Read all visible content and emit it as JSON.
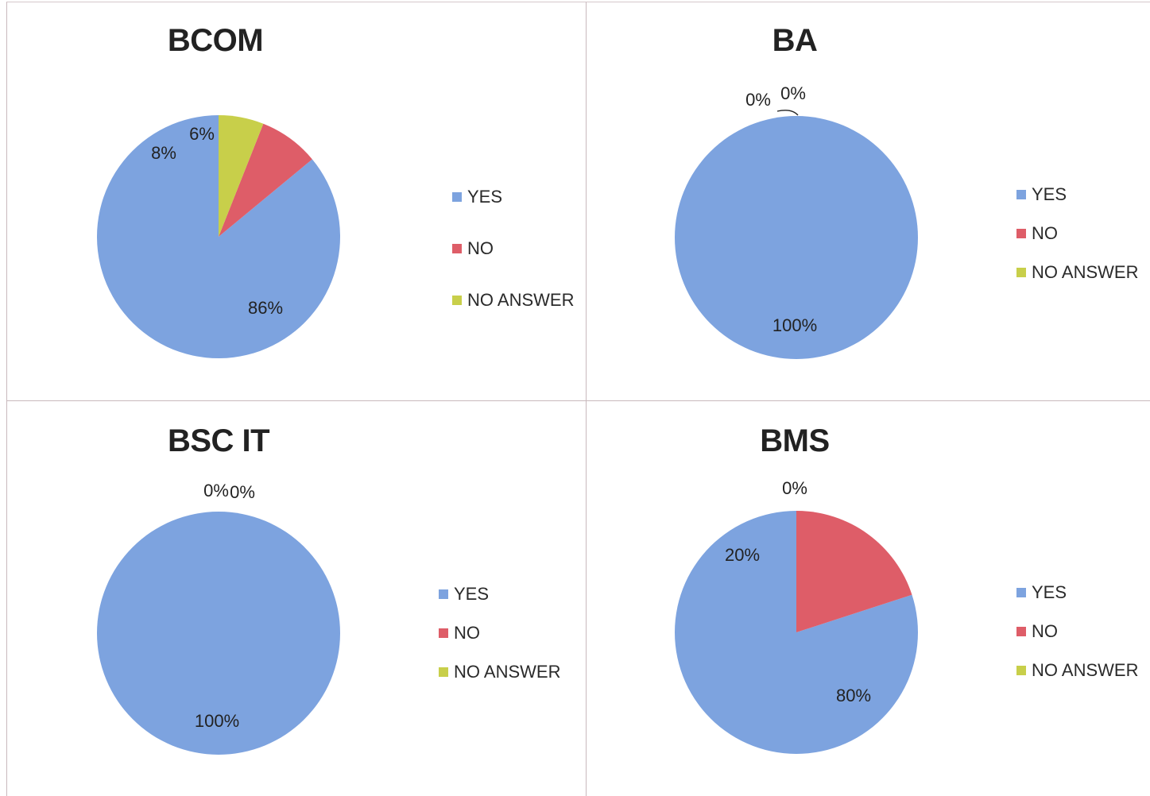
{
  "colors": {
    "YES": "#7da3df",
    "NO": "#de5d68",
    "NO ANSWER": "#c8cf4a"
  },
  "chart_data": [
    {
      "type": "pie",
      "title": "BCOM",
      "labels": [
        "YES",
        "NO",
        "NO ANSWER"
      ],
      "values": [
        86,
        8,
        6
      ],
      "data_labels": [
        "86%",
        "8%",
        "6%"
      ],
      "legend": "right"
    },
    {
      "type": "pie",
      "title": "BA",
      "labels": [
        "YES",
        "NO",
        "NO ANSWER"
      ],
      "values": [
        100,
        0,
        0
      ],
      "data_labels": [
        "100%",
        "0%",
        "0%"
      ],
      "legend": "right"
    },
    {
      "type": "pie",
      "title": "BSC IT",
      "labels": [
        "YES",
        "NO",
        "NO ANSWER"
      ],
      "values": [
        100,
        0,
        0
      ],
      "data_labels": [
        "100%",
        "0%",
        "0%"
      ],
      "legend": "right"
    },
    {
      "type": "pie",
      "title": "BMS",
      "labels": [
        "YES",
        "NO",
        "NO ANSWER"
      ],
      "values": [
        80,
        20,
        0
      ],
      "data_labels": [
        "80%",
        "20%",
        "0%"
      ],
      "legend": "right"
    }
  ]
}
